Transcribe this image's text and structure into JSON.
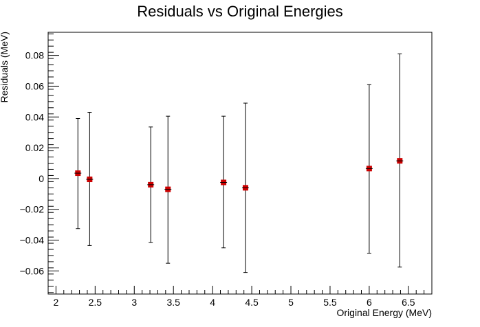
{
  "chart_data": {
    "type": "scatter",
    "title": "Residuals vs Original Energies",
    "xlabel": "Original Energy (MeV)",
    "ylabel": "Residuals (MeV)",
    "xlim": [
      1.9,
      6.8
    ],
    "ylim": [
      -0.075,
      0.095
    ],
    "x_ticks": [
      2,
      2.5,
      3,
      3.5,
      4,
      4.5,
      5,
      5.5,
      6,
      6.5
    ],
    "x_tick_labels": [
      "2",
      "2.5",
      "3",
      "3.5",
      "4",
      "4.5",
      "5",
      "5.5",
      "6",
      "6.5"
    ],
    "y_ticks": [
      -0.06,
      -0.04,
      -0.02,
      0,
      0.02,
      0.04,
      0.06,
      0.08
    ],
    "y_tick_labels": [
      "−0.06",
      "−0.04",
      "−0.02",
      "0",
      "0.02",
      "0.04",
      "0.06",
      "0.08"
    ],
    "grid": false,
    "marker_color": "#cc0000",
    "errorbar_color": "#000000",
    "points": [
      {
        "x": 2.28,
        "y": 0.0035,
        "yerr_low": 0.036,
        "yerr_high": 0.0355
      },
      {
        "x": 2.43,
        "y": -0.0005,
        "yerr_low": 0.043,
        "yerr_high": 0.0435
      },
      {
        "x": 3.21,
        "y": -0.004,
        "yerr_low": 0.0375,
        "yerr_high": 0.0375
      },
      {
        "x": 3.43,
        "y": -0.007,
        "yerr_low": 0.048,
        "yerr_high": 0.0475
      },
      {
        "x": 4.14,
        "y": -0.0025,
        "yerr_low": 0.0425,
        "yerr_high": 0.043
      },
      {
        "x": 4.42,
        "y": -0.006,
        "yerr_low": 0.055,
        "yerr_high": 0.055
      },
      {
        "x": 6.0,
        "y": 0.0065,
        "yerr_low": 0.055,
        "yerr_high": 0.0545
      },
      {
        "x": 6.39,
        "y": 0.0115,
        "yerr_low": 0.069,
        "yerr_high": 0.0695
      }
    ]
  }
}
